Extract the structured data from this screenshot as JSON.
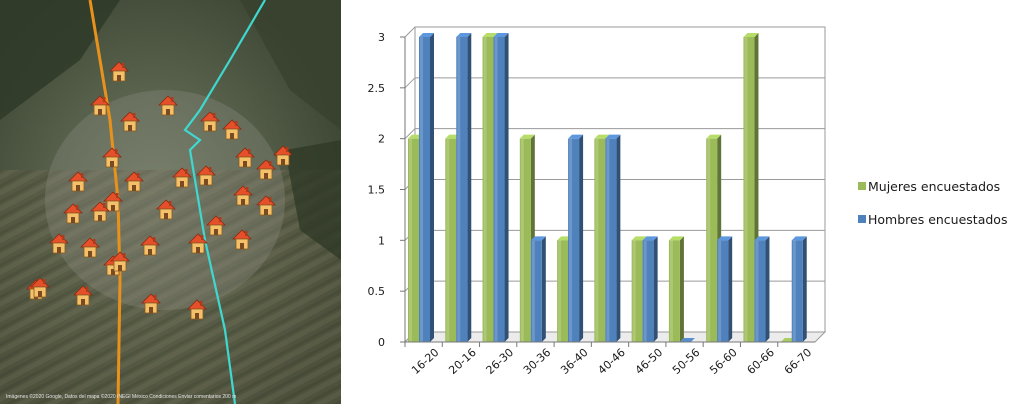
{
  "map": {
    "credit": "Imágenes ©2020 Google, Datos del mapa ©2020 INEGI   México   Condiciones   Enviar comentarios   200 m",
    "marker_icon": "house-icon",
    "marker_count": 33,
    "colors": {
      "road_orange": "#e8921c",
      "road_cyan": "#3fd8d0"
    }
  },
  "chart_data": {
    "type": "bar",
    "title": "",
    "xlabel": "",
    "ylabel": "",
    "categories": [
      "16-20",
      "20-16",
      "26-30",
      "30-36",
      "36-40",
      "40-46",
      "46-50",
      "50-56",
      "56-60",
      "60-66",
      "66-70"
    ],
    "yticks": [
      "0",
      "0.5",
      "1",
      "1.5",
      "2",
      "2.5",
      "3"
    ],
    "ylim": [
      0,
      3
    ],
    "grid": true,
    "legend_position": "right",
    "series": [
      {
        "name": "Mujeres encuestados",
        "values": [
          2,
          2,
          3,
          2,
          1,
          2,
          1,
          1,
          2,
          3,
          0
        ],
        "color": "#9bbb59"
      },
      {
        "name": "Hombres encuestados",
        "values": [
          3,
          3,
          3,
          1,
          2,
          2,
          1,
          0,
          1,
          1,
          1
        ],
        "color": "#4f81bd"
      }
    ]
  }
}
